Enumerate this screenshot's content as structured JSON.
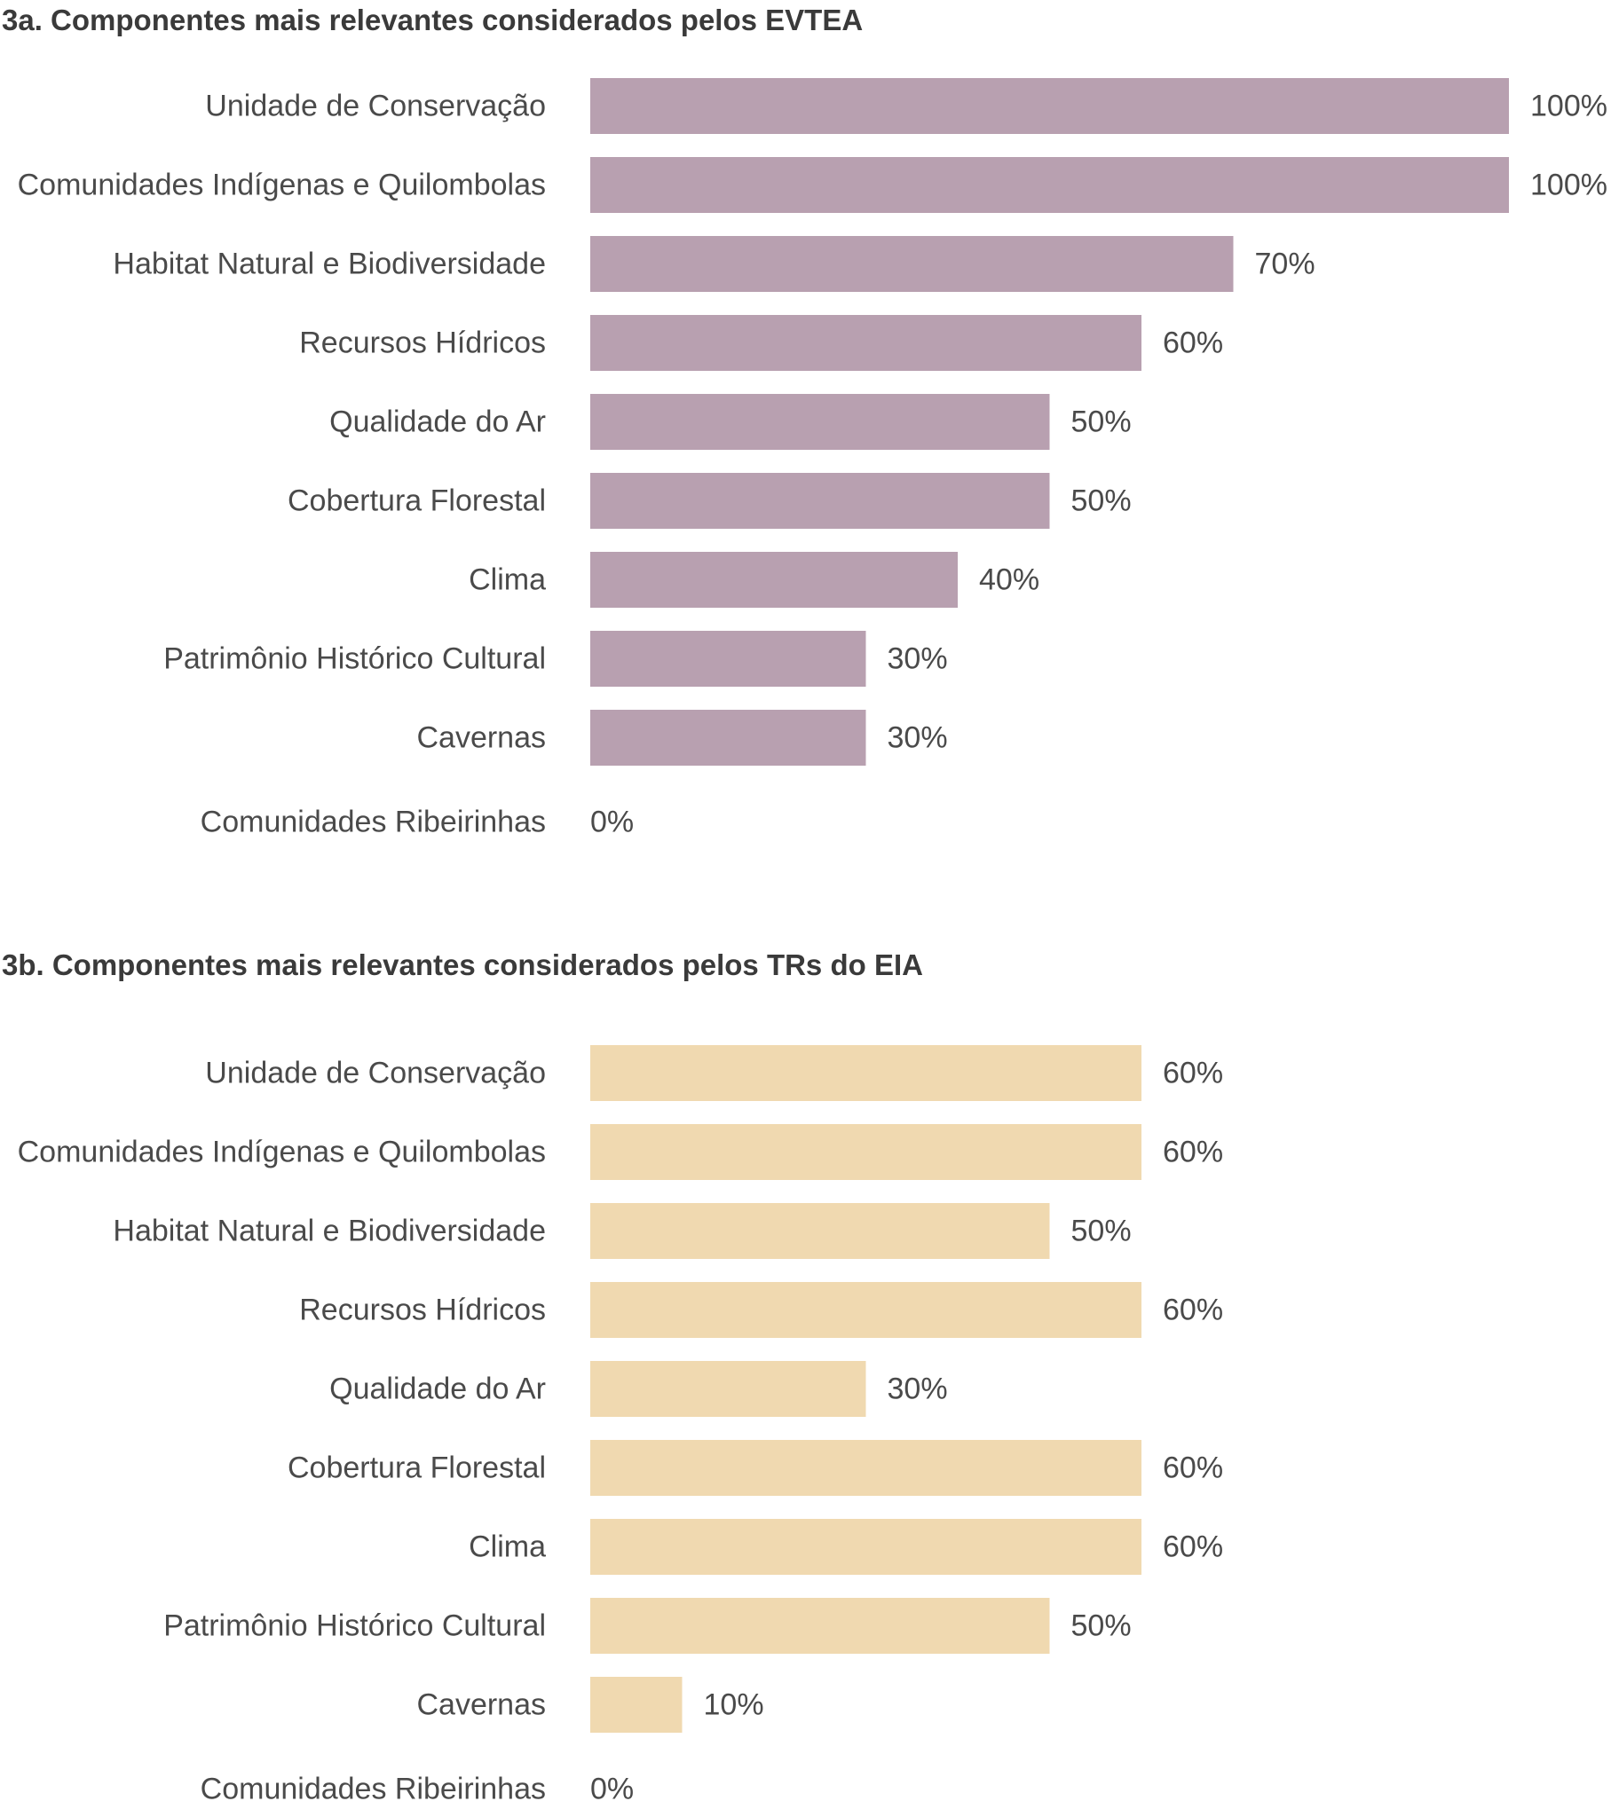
{
  "chart_data": [
    {
      "type": "bar",
      "orientation": "horizontal",
      "title": "3a. Componentes mais relevantes considerados pelos EVTEA",
      "categories": [
        "Unidade de Conservação",
        "Comunidades Indígenas e Quilombolas",
        "Habitat Natural e Biodiversidade",
        "Recursos Hídricos",
        "Qualidade do Ar",
        "Cobertura Florestal",
        "Clima",
        "Patrimônio Histórico Cultural",
        "Cavernas",
        "Comunidades Ribeirinhas"
      ],
      "values": [
        100,
        100,
        70,
        60,
        50,
        50,
        40,
        30,
        30,
        0
      ],
      "value_labels": [
        "100%",
        "100%",
        "70%",
        "60%",
        "50%",
        "50%",
        "40%",
        "30%",
        "30%",
        "0%"
      ],
      "xlim": [
        0,
        100
      ],
      "unit": "%",
      "color": "#b8a0b0",
      "grid": false,
      "legend": "none"
    },
    {
      "type": "bar",
      "orientation": "horizontal",
      "title": "3b. Componentes mais relevantes considerados pelos TRs do EIA",
      "categories": [
        "Unidade de Conservação",
        "Comunidades Indígenas e Quilombolas",
        "Habitat Natural e Biodiversidade",
        "Recursos Hídricos",
        "Qualidade do Ar",
        "Cobertura Florestal",
        "Clima",
        "Patrimônio Histórico Cultural",
        "Cavernas",
        "Comunidades Ribeirinhas"
      ],
      "values": [
        60,
        60,
        50,
        60,
        30,
        60,
        60,
        50,
        10,
        0
      ],
      "value_labels": [
        "60%",
        "60%",
        "50%",
        "60%",
        "30%",
        "60%",
        "60%",
        "50%",
        "10%",
        "0%"
      ],
      "xlim": [
        0,
        100
      ],
      "unit": "%",
      "color": "#f0d9b0",
      "grid": false,
      "legend": "none"
    }
  ]
}
